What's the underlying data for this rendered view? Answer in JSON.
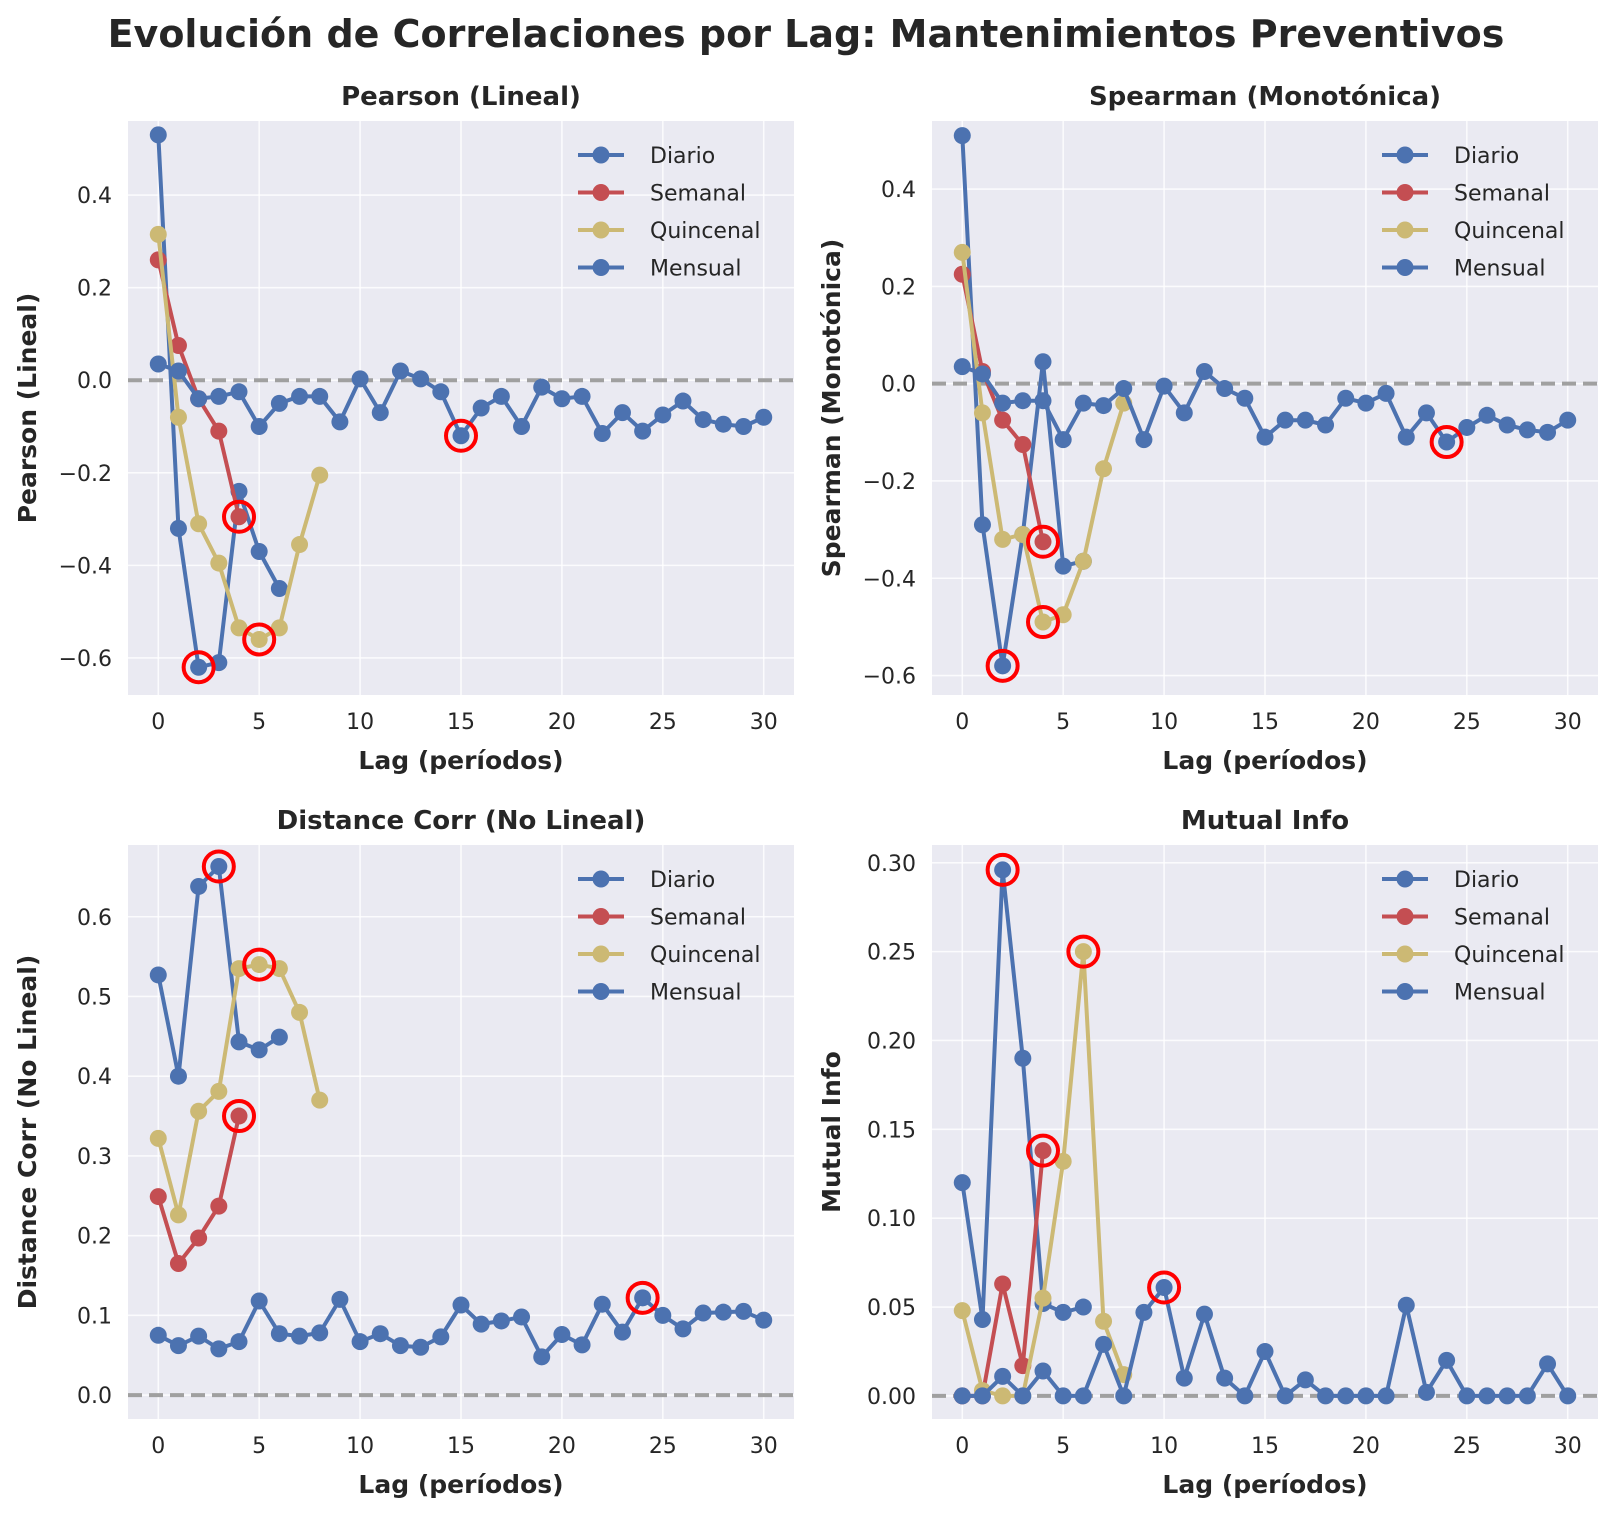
{
  "figure": {
    "suptitle": "Evolución de Correlaciones por Lag: Mantenimientos Preventivos"
  },
  "colors": {
    "panel_background": "#EAEAF2",
    "grid": "#FFFFFF",
    "diario": "#4C72B0",
    "semanal": "#C44E52",
    "quincenal": "#CCB974",
    "mensual": "#4C72B0",
    "zero_line": "#A0A0A0",
    "highlight_ring": "#FF0000"
  },
  "chart_data": [
    {
      "type": "line",
      "title": "Pearson (Lineal)",
      "xlabel": "Lag (períodos)",
      "ylabel": "Pearson (Lineal)",
      "xlim": [
        -1.5,
        31.5
      ],
      "ylim": [
        -0.68,
        0.56
      ],
      "xticks": [
        0,
        5,
        10,
        15,
        20,
        25,
        30
      ],
      "yticks": [
        -0.6,
        -0.4,
        -0.2,
        0.0,
        0.2,
        0.4
      ],
      "ytick_labels": [
        "−0.6",
        "−0.4",
        "−0.2",
        "0.0",
        "0.2",
        "0.4"
      ],
      "grid": true,
      "legend_position": "top-right",
      "zero_line": 0,
      "series": [
        {
          "name": "Diario",
          "x": [
            0,
            1,
            2,
            3,
            4,
            5,
            6
          ],
          "y": [
            0.53,
            -0.32,
            -0.62,
            -0.61,
            -0.24,
            -0.37,
            -0.45
          ],
          "highlight": 2
        },
        {
          "name": "Semanal",
          "x": [
            0,
            1,
            2,
            3,
            4
          ],
          "y": [
            0.26,
            0.075,
            -0.04,
            -0.11,
            -0.295
          ],
          "highlight": 4
        },
        {
          "name": "Quincenal",
          "x": [
            0,
            1,
            2,
            3,
            4,
            5,
            6,
            7,
            8
          ],
          "y": [
            0.315,
            -0.08,
            -0.31,
            -0.395,
            -0.535,
            -0.56,
            -0.535,
            -0.355,
            -0.205
          ],
          "highlight": 5
        },
        {
          "name": "Mensual",
          "x": [
            0,
            1,
            2,
            3,
            4,
            5,
            6,
            7,
            8,
            9,
            10,
            11,
            12,
            13,
            14,
            15,
            16,
            17,
            18,
            19,
            20,
            21,
            22,
            23,
            24,
            25,
            26,
            27,
            28,
            29,
            30
          ],
          "y": [
            0.035,
            0.02,
            -0.04,
            -0.035,
            -0.025,
            -0.1,
            -0.05,
            -0.035,
            -0.035,
            -0.09,
            0.003,
            -0.07,
            0.02,
            0.003,
            -0.025,
            -0.12,
            -0.06,
            -0.035,
            -0.1,
            -0.015,
            -0.04,
            -0.035,
            -0.115,
            -0.07,
            -0.11,
            -0.075,
            -0.045,
            -0.085,
            -0.095,
            -0.1,
            -0.08
          ],
          "highlight": 15
        }
      ]
    },
    {
      "type": "line",
      "title": "Spearman (Monotónica)",
      "xlabel": "Lag (períodos)",
      "ylabel": "Spearman (Monotónica)",
      "xlim": [
        -1.5,
        31.5
      ],
      "ylim": [
        -0.64,
        0.54
      ],
      "xticks": [
        0,
        5,
        10,
        15,
        20,
        25,
        30
      ],
      "yticks": [
        -0.6,
        -0.4,
        -0.2,
        0.0,
        0.2,
        0.4
      ],
      "ytick_labels": [
        "−0.6",
        "−0.4",
        "−0.2",
        "0.0",
        "0.2",
        "0.4"
      ],
      "grid": true,
      "legend_position": "top-right",
      "zero_line": 0,
      "series": [
        {
          "name": "Diario",
          "x": [
            0,
            1,
            2,
            3,
            4,
            5,
            6
          ],
          "y": [
            0.51,
            -0.29,
            -0.58,
            -0.31,
            0.045,
            -0.375,
            -0.365
          ],
          "highlight": 2
        },
        {
          "name": "Semanal",
          "x": [
            0,
            1,
            2,
            3,
            4
          ],
          "y": [
            0.225,
            0.025,
            -0.075,
            -0.125,
            -0.325
          ],
          "highlight": 4
        },
        {
          "name": "Quincenal",
          "x": [
            0,
            1,
            2,
            3,
            4,
            5,
            6,
            7,
            8
          ],
          "y": [
            0.27,
            -0.06,
            -0.32,
            -0.31,
            -0.49,
            -0.475,
            -0.365,
            -0.175,
            -0.04
          ],
          "highlight": 4
        },
        {
          "name": "Mensual",
          "x": [
            0,
            1,
            2,
            3,
            4,
            5,
            6,
            7,
            8,
            9,
            10,
            11,
            12,
            13,
            14,
            15,
            16,
            17,
            18,
            19,
            20,
            21,
            22,
            23,
            24,
            25,
            26,
            27,
            28,
            29,
            30
          ],
          "y": [
            0.035,
            0.02,
            -0.04,
            -0.035,
            -0.035,
            -0.115,
            -0.04,
            -0.045,
            -0.01,
            -0.115,
            -0.005,
            -0.06,
            0.025,
            -0.01,
            -0.03,
            -0.11,
            -0.075,
            -0.075,
            -0.085,
            -0.03,
            -0.04,
            -0.02,
            -0.11,
            -0.06,
            -0.12,
            -0.09,
            -0.065,
            -0.085,
            -0.095,
            -0.1,
            -0.075
          ],
          "highlight": 24
        }
      ]
    },
    {
      "type": "line",
      "title": "Distance Corr (No Lineal)",
      "xlabel": "Lag (períodos)",
      "ylabel": "Distance Corr (No Lineal)",
      "xlim": [
        -1.5,
        31.5
      ],
      "ylim": [
        -0.03,
        0.69
      ],
      "xticks": [
        0,
        5,
        10,
        15,
        20,
        25,
        30
      ],
      "yticks": [
        0.0,
        0.1,
        0.2,
        0.3,
        0.4,
        0.5,
        0.6
      ],
      "ytick_labels": [
        "0.0",
        "0.1",
        "0.2",
        "0.3",
        "0.4",
        "0.5",
        "0.6"
      ],
      "grid": true,
      "legend_position": "top-right",
      "zero_line": 0,
      "series": [
        {
          "name": "Diario",
          "x": [
            0,
            1,
            2,
            3,
            4,
            5,
            6
          ],
          "y": [
            0.527,
            0.4,
            0.638,
            0.663,
            0.443,
            0.433,
            0.449
          ],
          "highlight": 3
        },
        {
          "name": "Semanal",
          "x": [
            0,
            1,
            2,
            3,
            4
          ],
          "y": [
            0.249,
            0.165,
            0.197,
            0.237,
            0.35
          ],
          "highlight": 4
        },
        {
          "name": "Quincenal",
          "x": [
            0,
            1,
            2,
            3,
            4,
            5,
            6,
            7,
            8
          ],
          "y": [
            0.322,
            0.226,
            0.356,
            0.381,
            0.535,
            0.54,
            0.535,
            0.48,
            0.37
          ],
          "highlight": 5
        },
        {
          "name": "Mensual",
          "x": [
            0,
            1,
            2,
            3,
            4,
            5,
            6,
            7,
            8,
            9,
            10,
            11,
            12,
            13,
            14,
            15,
            16,
            17,
            18,
            19,
            20,
            21,
            22,
            23,
            24,
            25,
            26,
            27,
            28,
            29,
            30
          ],
          "y": [
            0.075,
            0.062,
            0.074,
            0.058,
            0.067,
            0.118,
            0.077,
            0.074,
            0.078,
            0.12,
            0.067,
            0.077,
            0.062,
            0.06,
            0.073,
            0.113,
            0.089,
            0.093,
            0.098,
            0.048,
            0.076,
            0.063,
            0.114,
            0.079,
            0.122,
            0.1,
            0.083,
            0.103,
            0.104,
            0.105,
            0.094
          ],
          "highlight": 24
        }
      ]
    },
    {
      "type": "line",
      "title": "Mutual Info",
      "xlabel": "Lag (períodos)",
      "ylabel": "Mutual Info",
      "xlim": [
        -1.5,
        31.5
      ],
      "ylim": [
        -0.013,
        0.31
      ],
      "xticks": [
        0,
        5,
        10,
        15,
        20,
        25,
        30
      ],
      "yticks": [
        0.0,
        0.05,
        0.1,
        0.15,
        0.2,
        0.25,
        0.3
      ],
      "ytick_labels": [
        "0.00",
        "0.05",
        "0.10",
        "0.15",
        "0.20",
        "0.25",
        "0.30"
      ],
      "grid": true,
      "legend_position": "top-right",
      "zero_line": 0,
      "series": [
        {
          "name": "Diario",
          "x": [
            0,
            1,
            2,
            3,
            4,
            5,
            6
          ],
          "y": [
            0.12,
            0.043,
            0.296,
            0.19,
            0.052,
            0.047,
            0.05
          ],
          "highlight": 2
        },
        {
          "name": "Semanal",
          "x": [
            0,
            1,
            2,
            3,
            4
          ],
          "y": [
            0.0,
            0.0,
            0.063,
            0.017,
            0.138
          ],
          "highlight": 4
        },
        {
          "name": "Quincenal",
          "x": [
            0,
            1,
            2,
            3,
            4,
            5,
            6,
            7,
            8
          ],
          "y": [
            0.048,
            0.003,
            0.0,
            0.0,
            0.055,
            0.132,
            0.25,
            0.042,
            0.012
          ],
          "highlight": 6
        },
        {
          "name": "Mensual",
          "x": [
            0,
            1,
            2,
            3,
            4,
            5,
            6,
            7,
            8,
            9,
            10,
            11,
            12,
            13,
            14,
            15,
            16,
            17,
            18,
            19,
            20,
            21,
            22,
            23,
            24,
            25,
            26,
            27,
            28,
            29,
            30
          ],
          "y": [
            0.0,
            0.0,
            0.011,
            0.0,
            0.014,
            0.0,
            0.0,
            0.029,
            0.0,
            0.047,
            0.061,
            0.01,
            0.046,
            0.01,
            0.0,
            0.025,
            0.0,
            0.009,
            0.0,
            0.0,
            0.0,
            0.0,
            0.051,
            0.002,
            0.02,
            0.0,
            0.0,
            0.0,
            0.0,
            0.018,
            0.0
          ],
          "highlight": 10
        }
      ]
    }
  ]
}
